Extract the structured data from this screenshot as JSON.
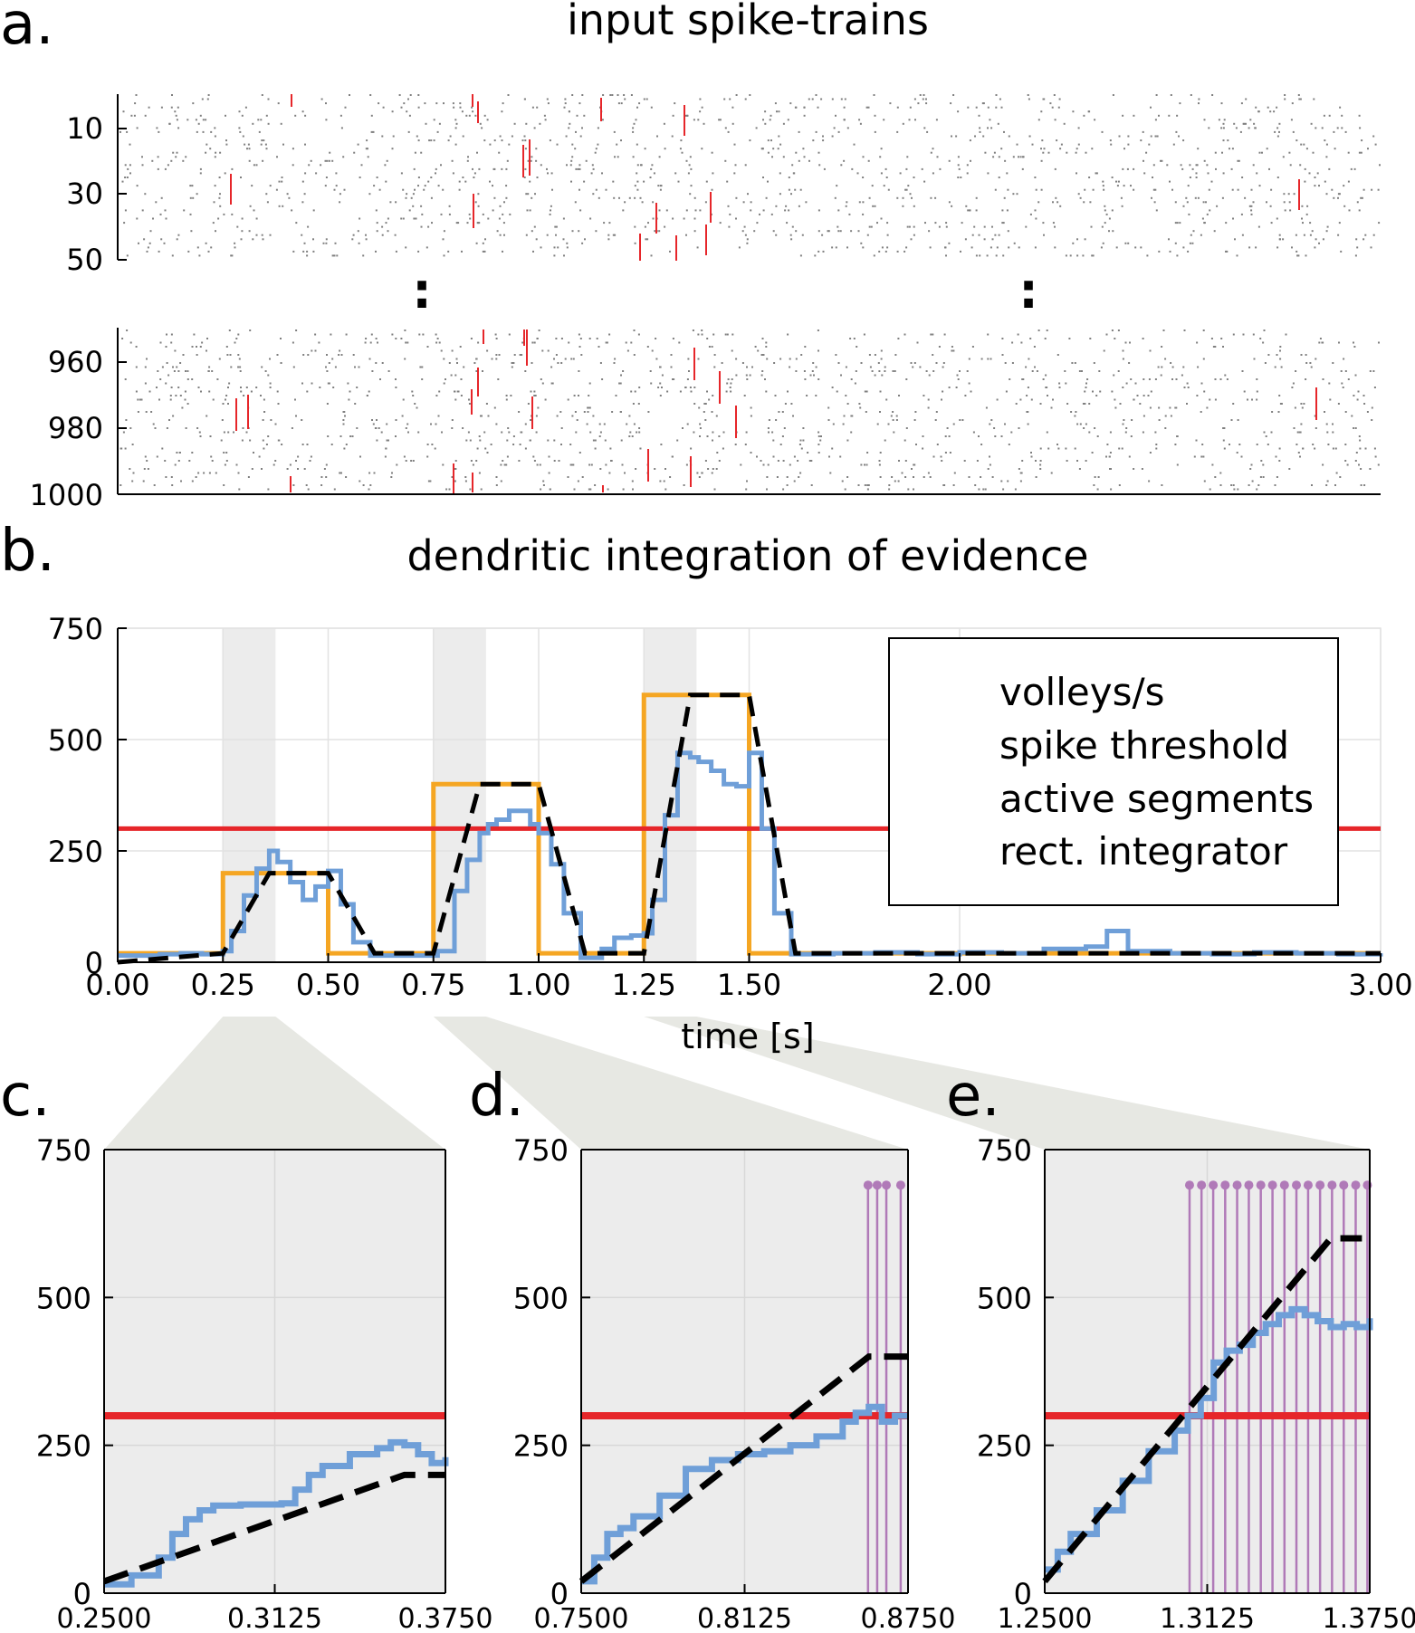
{
  "panels": {
    "a": {
      "letter": "a.",
      "title": "input spike-trains",
      "top_yticks": [
        "10",
        "30",
        "50"
      ],
      "bottom_yticks": [
        "960",
        "980",
        "1000"
      ],
      "ellipsis": ":"
    },
    "b": {
      "letter": "b.",
      "title": "dendritic integration of evidence",
      "xlabel": "time [s]",
      "yticks": [
        "0",
        "250",
        "500",
        "750"
      ],
      "xticks": [
        "0.00",
        "0.25",
        "0.50",
        "0.75",
        "1.00",
        "1.25",
        "1.50",
        "2.00",
        "3.00"
      ],
      "legend": [
        "volleys/s",
        "spike threshold",
        "active segments",
        "rect. integrator"
      ]
    },
    "c": {
      "letter": "c.",
      "yticks": [
        "0",
        "250",
        "500",
        "750"
      ],
      "xticks": [
        "0.2500",
        "0.3125",
        "0.3750"
      ]
    },
    "d": {
      "letter": "d.",
      "yticks": [
        "0",
        "250",
        "500",
        "750"
      ],
      "xticks": [
        "0.7500",
        "0.8125",
        "0.8750"
      ]
    },
    "e": {
      "letter": "e.",
      "yticks": [
        "0",
        "250",
        "500",
        "750"
      ],
      "xticks": [
        "1.2500",
        "1.3125",
        "1.3750"
      ]
    }
  },
  "colors": {
    "volleys": "#f5a623",
    "threshold": "#e6262a",
    "active": "#6f9fd8",
    "integrator": "#000000",
    "stem": "#b07ab8",
    "shade": "#ececec",
    "raster": "#7f7f7f",
    "raster_red": "#e6262a"
  },
  "chart_data": [
    {
      "panel": "b",
      "type": "line",
      "xlim": [
        0,
        3
      ],
      "ylim": [
        0,
        750
      ],
      "threshold": 300,
      "shaded_intervals": [
        [
          0.25,
          0.375
        ],
        [
          0.75,
          0.875
        ],
        [
          1.25,
          1.375
        ]
      ],
      "series": [
        {
          "name": "volleys/s",
          "x": [
            0,
            0.25,
            0.25,
            0.5,
            0.5,
            0.75,
            0.75,
            1.0,
            1.0,
            1.25,
            1.25,
            1.5,
            1.5,
            3.0
          ],
          "y": [
            20,
            20,
            200,
            200,
            20,
            20,
            400,
            400,
            20,
            20,
            600,
            600,
            20,
            20
          ]
        },
        {
          "name": "spike threshold",
          "x": [
            0,
            3
          ],
          "y": [
            300,
            300
          ]
        },
        {
          "name": "active segments",
          "x": [
            0,
            0.05,
            0.1,
            0.15,
            0.2,
            0.25,
            0.27,
            0.3,
            0.33,
            0.36,
            0.38,
            0.41,
            0.44,
            0.47,
            0.5,
            0.53,
            0.56,
            0.6,
            0.65,
            0.7,
            0.74,
            0.76,
            0.8,
            0.83,
            0.86,
            0.88,
            0.9,
            0.93,
            0.95,
            0.98,
            1.0,
            1.03,
            1.06,
            1.1,
            1.15,
            1.18,
            1.22,
            1.25,
            1.27,
            1.3,
            1.33,
            1.36,
            1.38,
            1.41,
            1.44,
            1.47,
            1.5,
            1.53,
            1.56,
            1.6,
            1.7,
            1.8,
            1.9,
            2.0,
            2.1,
            2.2,
            2.3,
            2.35,
            2.4,
            2.5,
            2.6,
            2.7,
            2.8,
            2.9,
            3.0
          ],
          "y": [
            15,
            15,
            18,
            20,
            18,
            25,
            70,
            150,
            210,
            250,
            225,
            180,
            140,
            170,
            205,
            130,
            45,
            15,
            15,
            15,
            15,
            25,
            160,
            230,
            290,
            310,
            320,
            340,
            340,
            310,
            290,
            220,
            110,
            10,
            30,
            55,
            60,
            65,
            140,
            330,
            470,
            460,
            450,
            430,
            400,
            395,
            470,
            300,
            110,
            18,
            20,
            22,
            18,
            22,
            20,
            30,
            35,
            70,
            25,
            20,
            18,
            22,
            20,
            18,
            20
          ]
        },
        {
          "name": "rect. integrator",
          "x": [
            0,
            0.25,
            0.36,
            0.5,
            0.61,
            0.75,
            0.86,
            1.0,
            1.11,
            1.25,
            1.36,
            1.5,
            1.61,
            3.0
          ],
          "y": [
            0,
            20,
            200,
            200,
            20,
            20,
            400,
            400,
            20,
            20,
            600,
            600,
            20,
            20
          ]
        }
      ]
    },
    {
      "panel": "c",
      "type": "line",
      "xlim": [
        0.25,
        0.375
      ],
      "ylim": [
        0,
        750
      ],
      "threshold": 300,
      "series": [
        {
          "name": "active segments",
          "x": [
            0.25,
            0.26,
            0.27,
            0.275,
            0.28,
            0.285,
            0.29,
            0.3,
            0.31,
            0.315,
            0.32,
            0.325,
            0.33,
            0.34,
            0.35,
            0.355,
            0.36,
            0.365,
            0.37,
            0.375
          ],
          "y": [
            15,
            30,
            60,
            100,
            125,
            140,
            148,
            150,
            150,
            152,
            175,
            200,
            215,
            235,
            245,
            255,
            250,
            235,
            220,
            230
          ]
        },
        {
          "name": "rect. integrator",
          "x": [
            0.25,
            0.36,
            0.365,
            0.375
          ],
          "y": [
            20,
            200,
            200,
            200
          ]
        }
      ]
    },
    {
      "panel": "d",
      "type": "line",
      "xlim": [
        0.75,
        0.875
      ],
      "ylim": [
        0,
        750
      ],
      "threshold": 300,
      "stems_x": [
        0.8597,
        0.8632,
        0.8667,
        0.8722
      ],
      "stems_y": 690,
      "series": [
        {
          "name": "active segments",
          "x": [
            0.75,
            0.755,
            0.76,
            0.765,
            0.77,
            0.78,
            0.79,
            0.8,
            0.81,
            0.82,
            0.83,
            0.84,
            0.85,
            0.855,
            0.86,
            0.865,
            0.87,
            0.875
          ],
          "y": [
            20,
            60,
            100,
            110,
            130,
            165,
            210,
            225,
            235,
            240,
            250,
            265,
            290,
            305,
            315,
            290,
            300,
            300
          ]
        },
        {
          "name": "rect. integrator",
          "x": [
            0.75,
            0.86,
            0.875
          ],
          "y": [
            20,
            400,
            400
          ]
        }
      ]
    },
    {
      "panel": "e",
      "type": "line",
      "xlim": [
        1.25,
        1.375
      ],
      "ylim": [
        0,
        750
      ],
      "threshold": 300,
      "stems_x": [
        1.3057,
        1.3103,
        1.3148,
        1.3194,
        1.324,
        1.3285,
        1.3331,
        1.3376,
        1.3422,
        1.3468,
        1.3513,
        1.3559,
        1.3605,
        1.365,
        1.3696,
        1.3741
      ],
      "stems_y": 690,
      "series": [
        {
          "name": "active segments",
          "x": [
            1.25,
            1.255,
            1.26,
            1.27,
            1.28,
            1.29,
            1.3,
            1.305,
            1.31,
            1.315,
            1.32,
            1.325,
            1.33,
            1.335,
            1.34,
            1.345,
            1.35,
            1.355,
            1.36,
            1.365,
            1.37,
            1.375
          ],
          "y": [
            40,
            70,
            100,
            140,
            190,
            240,
            275,
            300,
            330,
            390,
            410,
            420,
            440,
            455,
            470,
            480,
            470,
            460,
            450,
            455,
            450,
            465
          ]
        },
        {
          "name": "rect. integrator",
          "x": [
            1.25,
            1.36,
            1.372
          ],
          "y": [
            20,
            600,
            600
          ]
        }
      ]
    }
  ]
}
